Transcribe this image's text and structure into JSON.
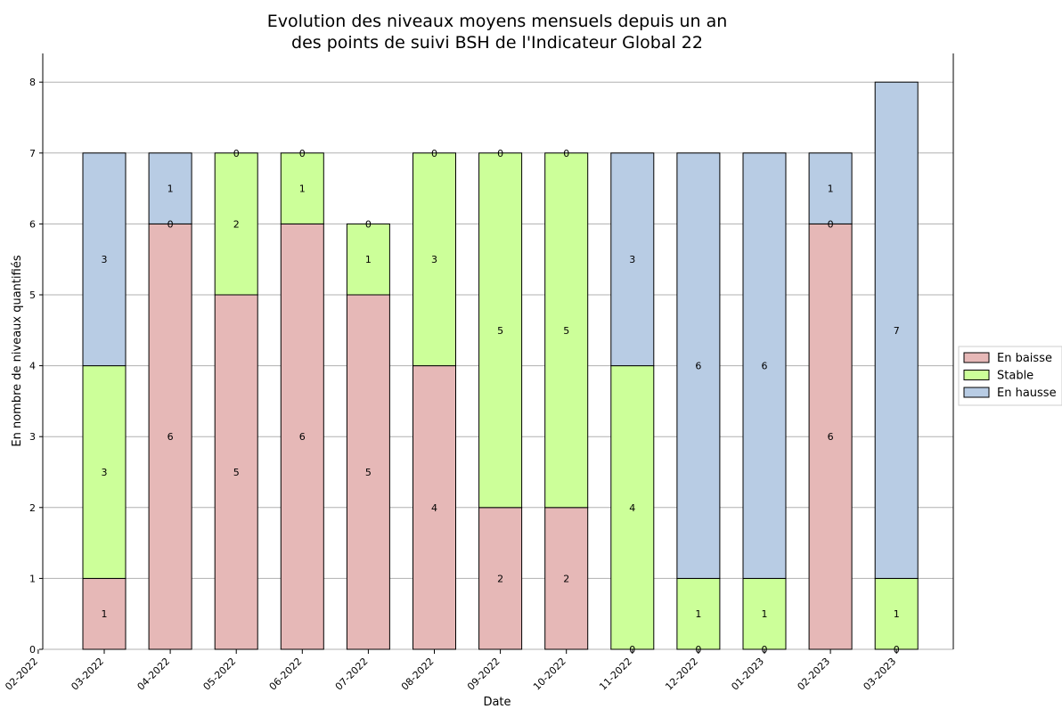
{
  "chart_data": {
    "type": "bar",
    "stacked": true,
    "title": [
      "Evolution des niveaux moyens mensuels depuis un an",
      "des points de suivi BSH de l'Indicateur Global 22"
    ],
    "xlabel": "Date",
    "ylabel": "En nombre de niveaux quantifiés",
    "ylim": [
      0,
      8.45
    ],
    "yticks": [
      0,
      1,
      2,
      3,
      4,
      5,
      6,
      7,
      8
    ],
    "grid": "horizontal",
    "legend_position": "right",
    "x_ticks": [
      "02-2022",
      "03-2022",
      "04-2022",
      "05-2022",
      "06-2022",
      "07-2022",
      "08-2022",
      "09-2022",
      "10-2022",
      "11-2022",
      "12-2022",
      "01-2023",
      "02-2023",
      "03-2023"
    ],
    "categories": [
      "03-2022",
      "04-2022",
      "05-2022",
      "06-2022",
      "07-2022",
      "08-2022",
      "09-2022",
      "10-2022",
      "11-2022",
      "12-2022",
      "01-2023",
      "02-2023",
      "03-2023"
    ],
    "series": [
      {
        "name": "En baisse",
        "color": "#e6b8b7",
        "values": [
          1,
          6,
          5,
          6,
          5,
          4,
          2,
          2,
          0,
          0,
          0,
          6,
          0
        ]
      },
      {
        "name": "Stable",
        "color": "#ccff99",
        "values": [
          3,
          0,
          2,
          1,
          1,
          3,
          5,
          5,
          4,
          1,
          1,
          0,
          1
        ]
      },
      {
        "name": "En hausse",
        "color": "#b8cce4",
        "values": [
          3,
          1,
          0,
          0,
          0,
          0,
          0,
          0,
          3,
          6,
          6,
          1,
          7
        ]
      }
    ]
  }
}
